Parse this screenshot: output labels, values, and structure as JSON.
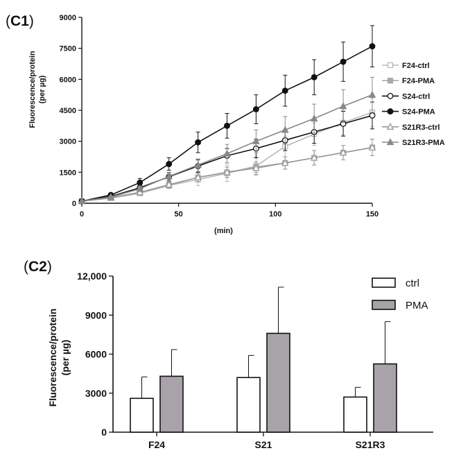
{
  "chart_data": [
    {
      "panel": "(C1)",
      "panel_bold": "C1",
      "type": "line",
      "xlabel": "(min)",
      "ylabel": [
        "Fluorescence/protein",
        "(per µg)"
      ],
      "xlim": [
        0,
        150
      ],
      "ylim": [
        0,
        9000
      ],
      "xticks": [
        0,
        50,
        100,
        150
      ],
      "yticks": [
        0,
        1500,
        3000,
        4500,
        6000,
        7500,
        9000
      ],
      "x": [
        0,
        15,
        30,
        45,
        60,
        75,
        90,
        105,
        120,
        135,
        150
      ],
      "series": [
        {
          "name": "F24-ctrl",
          "color": "#b8b8b8",
          "marker": "square-open",
          "values": [
            100,
            250,
            480,
            860,
            1150,
            1450,
            1800,
            2750,
            3350,
            3900,
            4400
          ],
          "errors": [
            0,
            60,
            100,
            150,
            300,
            400,
            450,
            500,
            550,
            600,
            700
          ]
        },
        {
          "name": "F24-PMA",
          "color": "#a8a8a8",
          "marker": "square",
          "values": [
            100,
            260,
            520,
            880,
            1250,
            1500,
            1750,
            1950,
            2200,
            2450,
            2700
          ],
          "errors": [
            0,
            60,
            100,
            150,
            200,
            250,
            250,
            300,
            350,
            350,
            400
          ]
        },
        {
          "name": "S24-ctrl",
          "color": "#111111",
          "marker": "circle-open",
          "values": [
            100,
            330,
            750,
            1280,
            1800,
            2300,
            2650,
            3050,
            3450,
            3850,
            4250
          ],
          "errors": [
            0,
            60,
            120,
            200,
            300,
            350,
            450,
            500,
            550,
            600,
            650
          ]
        },
        {
          "name": "S24-PMA",
          "color": "#111111",
          "marker": "circle",
          "values": [
            100,
            400,
            1000,
            1900,
            2950,
            3750,
            4550,
            5450,
            6100,
            6850,
            7600
          ],
          "errors": [
            0,
            80,
            200,
            300,
            500,
            600,
            700,
            750,
            850,
            950,
            1000
          ]
        },
        {
          "name": "S21R3-ctrl",
          "color": "#999999",
          "marker": "triangle-open",
          "values": [
            100,
            270,
            530,
            900,
            1250,
            1500,
            1700,
            1950,
            2200,
            2450,
            2700
          ],
          "errors": [
            0,
            60,
            100,
            150,
            200,
            250,
            300,
            300,
            350,
            350,
            400
          ]
        },
        {
          "name": "S21R3-PMA",
          "color": "#888888",
          "marker": "triangle",
          "values": [
            100,
            300,
            700,
            1300,
            1850,
            2400,
            3000,
            3550,
            4100,
            4700,
            5250
          ],
          "errors": [
            0,
            60,
            120,
            200,
            300,
            450,
            550,
            650,
            700,
            800,
            850
          ]
        }
      ]
    },
    {
      "panel": "(C2)",
      "panel_bold": "C2",
      "type": "bar",
      "xlabel": "",
      "ylabel": [
        "Fluorescence/protein",
        "(per µg)"
      ],
      "categories": [
        "F24",
        "S21",
        "S21R3"
      ],
      "ylim": [
        0,
        12000
      ],
      "yticks": [
        0,
        3000,
        6000,
        9000,
        12000
      ],
      "ytick_labels": [
        "0",
        "3000",
        "6000",
        "9000",
        "12,000"
      ],
      "series": [
        {
          "name": "ctrl",
          "color": "#ffffff",
          "values": [
            2600,
            4200,
            2700
          ],
          "errors": [
            1650,
            1700,
            750
          ]
        },
        {
          "name": "PMA",
          "color": "#a7a3a8",
          "values": [
            4300,
            7600,
            5250
          ],
          "errors": [
            2050,
            3550,
            3250
          ]
        }
      ]
    }
  ]
}
